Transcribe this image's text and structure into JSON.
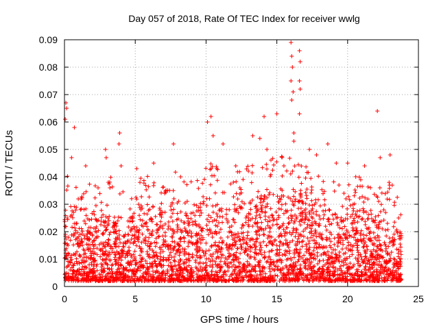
{
  "chart_data": {
    "type": "scatter",
    "title": "Day 057 of 2018, Rate Of TEC Index for receiver wwlg",
    "xlabel": "GPS time / hours",
    "ylabel": "ROTI / TECUs",
    "xlim": [
      0,
      25
    ],
    "ylim": [
      0,
      0.09
    ],
    "x_ticks": [
      0,
      5,
      10,
      15,
      20,
      25
    ],
    "x_tick_labels": [
      "0",
      "5",
      "10",
      "15",
      "20",
      "25"
    ],
    "y_ticks": [
      0,
      0.01,
      0.02,
      0.03,
      0.04,
      0.05,
      0.06,
      0.07,
      0.08,
      0.09
    ],
    "y_tick_labels": [
      "0",
      "0.01",
      "0.02",
      "0.03",
      "0.04",
      "0.05",
      "0.06",
      "0.07",
      "0.08",
      "0.09"
    ],
    "grid": true,
    "marker": "+",
    "color": "#ff0000",
    "series": [
      {
        "name": "ROTI",
        "envelope_hours": [
          0,
          0.5,
          1,
          1.5,
          2,
          2.5,
          3,
          3.5,
          4,
          4.5,
          5,
          5.5,
          6,
          6.5,
          7,
          7.5,
          8,
          8.5,
          9,
          9.5,
          10,
          10.5,
          11,
          11.5,
          12,
          12.5,
          13,
          13.5,
          14,
          14.5,
          15,
          15.5,
          16,
          16.5,
          17,
          17.5,
          18,
          18.5,
          19,
          19.5,
          20,
          20.5,
          21,
          21.5,
          22,
          22.5,
          23,
          23.5,
          23.8
        ],
        "envelope_typical_max": [
          0.034,
          0.028,
          0.022,
          0.024,
          0.027,
          0.024,
          0.03,
          0.026,
          0.025,
          0.024,
          0.028,
          0.03,
          0.031,
          0.028,
          0.027,
          0.029,
          0.032,
          0.026,
          0.027,
          0.028,
          0.033,
          0.034,
          0.03,
          0.029,
          0.03,
          0.031,
          0.032,
          0.033,
          0.034,
          0.035,
          0.036,
          0.036,
          0.036,
          0.036,
          0.035,
          0.034,
          0.03,
          0.027,
          0.027,
          0.025,
          0.027,
          0.028,
          0.029,
          0.027,
          0.026,
          0.028,
          0.027,
          0.022,
          0.02
        ],
        "floor_min": 0.002,
        "peaks": [
          {
            "x": 0.1,
            "y": 0.067
          },
          {
            "x": 0.15,
            "y": 0.065
          },
          {
            "x": 0.05,
            "y": 0.061
          },
          {
            "x": 0.7,
            "y": 0.058
          },
          {
            "x": 0.5,
            "y": 0.047
          },
          {
            "x": 1.5,
            "y": 0.044
          },
          {
            "x": 2.9,
            "y": 0.05
          },
          {
            "x": 2.95,
            "y": 0.047
          },
          {
            "x": 3.9,
            "y": 0.056
          },
          {
            "x": 3.85,
            "y": 0.052
          },
          {
            "x": 4.0,
            "y": 0.044
          },
          {
            "x": 5.1,
            "y": 0.043
          },
          {
            "x": 6.3,
            "y": 0.045
          },
          {
            "x": 7.7,
            "y": 0.052
          },
          {
            "x": 8.2,
            "y": 0.04
          },
          {
            "x": 10.1,
            "y": 0.06
          },
          {
            "x": 10.35,
            "y": 0.062
          },
          {
            "x": 10.5,
            "y": 0.055
          },
          {
            "x": 11.2,
            "y": 0.052
          },
          {
            "x": 12.1,
            "y": 0.044
          },
          {
            "x": 13.3,
            "y": 0.055
          },
          {
            "x": 13.8,
            "y": 0.054
          },
          {
            "x": 14.1,
            "y": 0.062
          },
          {
            "x": 14.3,
            "y": 0.05
          },
          {
            "x": 15.0,
            "y": 0.063
          },
          {
            "x": 15.5,
            "y": 0.044
          },
          {
            "x": 16.0,
            "y": 0.089
          },
          {
            "x": 16.05,
            "y": 0.084
          },
          {
            "x": 16.1,
            "y": 0.08
          },
          {
            "x": 16.0,
            "y": 0.075
          },
          {
            "x": 16.05,
            "y": 0.068
          },
          {
            "x": 16.15,
            "y": 0.071
          },
          {
            "x": 16.2,
            "y": 0.056
          },
          {
            "x": 16.2,
            "y": 0.053
          },
          {
            "x": 16.6,
            "y": 0.086
          },
          {
            "x": 16.65,
            "y": 0.082
          },
          {
            "x": 16.6,
            "y": 0.075
          },
          {
            "x": 16.65,
            "y": 0.072
          },
          {
            "x": 16.6,
            "y": 0.063
          },
          {
            "x": 17.3,
            "y": 0.05
          },
          {
            "x": 17.8,
            "y": 0.048
          },
          {
            "x": 18.6,
            "y": 0.052
          },
          {
            "x": 19.2,
            "y": 0.045
          },
          {
            "x": 20.0,
            "y": 0.045
          },
          {
            "x": 21.2,
            "y": 0.044
          },
          {
            "x": 22.1,
            "y": 0.064
          },
          {
            "x": 22.3,
            "y": 0.047
          },
          {
            "x": 23.0,
            "y": 0.048
          },
          {
            "x": 23.6,
            "y": 0.025
          }
        ]
      }
    ]
  }
}
